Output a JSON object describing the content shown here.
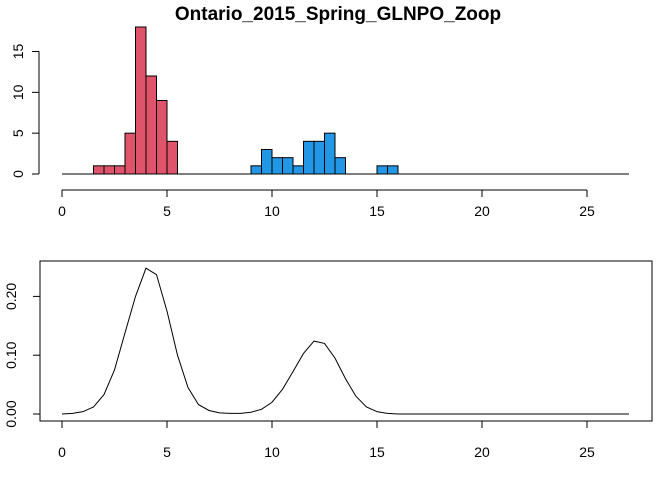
{
  "chart_data": [
    {
      "type": "bar",
      "title": "Ontario_2015_Spring_GLNPO_Zoop",
      "xlabel": "",
      "ylabel": "",
      "xlim": [
        0,
        27
      ],
      "ylim": [
        0,
        18
      ],
      "x_ticks": [
        0,
        5,
        10,
        15,
        20,
        25
      ],
      "y_ticks": [
        0,
        5,
        10,
        15
      ],
      "bin_width": 0.5,
      "series": [
        {
          "color": "#DF536B",
          "bins": [
            {
              "x0": 1.5,
              "x1": 2.0,
              "value": 1
            },
            {
              "x0": 2.0,
              "x1": 2.5,
              "value": 1
            },
            {
              "x0": 2.5,
              "x1": 3.0,
              "value": 1
            },
            {
              "x0": 3.0,
              "x1": 3.5,
              "value": 5
            },
            {
              "x0": 3.5,
              "x1": 4.0,
              "value": 18
            },
            {
              "x0": 4.0,
              "x1": 4.5,
              "value": 12
            },
            {
              "x0": 4.5,
              "x1": 5.0,
              "value": 9
            },
            {
              "x0": 5.0,
              "x1": 5.5,
              "value": 4
            }
          ]
        },
        {
          "color": "#2297E6",
          "bins": [
            {
              "x0": 9.0,
              "x1": 9.5,
              "value": 1
            },
            {
              "x0": 9.5,
              "x1": 10.0,
              "value": 3
            },
            {
              "x0": 10.0,
              "x1": 10.5,
              "value": 2
            },
            {
              "x0": 10.5,
              "x1": 11.0,
              "value": 2
            },
            {
              "x0": 11.0,
              "x1": 11.5,
              "value": 1
            },
            {
              "x0": 11.5,
              "x1": 12.0,
              "value": 4
            },
            {
              "x0": 12.0,
              "x1": 12.5,
              "value": 4
            },
            {
              "x0": 12.5,
              "x1": 13.0,
              "value": 5
            },
            {
              "x0": 13.0,
              "x1": 13.5,
              "value": 2
            },
            {
              "x0": 15.0,
              "x1": 15.5,
              "value": 1
            },
            {
              "x0": 15.5,
              "x1": 16.0,
              "value": 1
            }
          ]
        }
      ],
      "baseline_range": [
        0,
        27
      ]
    },
    {
      "type": "line",
      "title": "",
      "xlabel": "",
      "ylabel": "",
      "xlim": [
        0,
        27
      ],
      "ylim": [
        0,
        0.25
      ],
      "x_ticks": [
        0,
        5,
        10,
        15,
        20,
        25
      ],
      "y_ticks": [
        0.0,
        0.1,
        0.2
      ],
      "y_tick_labels": [
        "0.00",
        "0.10",
        "0.20"
      ],
      "series": [
        {
          "color": "#000000",
          "x": [
            0,
            0.5,
            1,
            1.5,
            2,
            2.5,
            3,
            3.5,
            4,
            4.5,
            5,
            5.5,
            6,
            6.5,
            7,
            7.5,
            8,
            8.5,
            9,
            9.5,
            10,
            10.5,
            11,
            11.5,
            12,
            12.5,
            13,
            13.5,
            14,
            14.5,
            15,
            15.5,
            16,
            17,
            18,
            19,
            20,
            21,
            22,
            23,
            24,
            25,
            26,
            27
          ],
          "y": [
            0.0,
            0.001,
            0.004,
            0.012,
            0.033,
            0.075,
            0.138,
            0.2,
            0.248,
            0.237,
            0.175,
            0.1,
            0.045,
            0.016,
            0.006,
            0.002,
            0.001,
            0.001,
            0.003,
            0.008,
            0.02,
            0.042,
            0.072,
            0.103,
            0.124,
            0.12,
            0.095,
            0.06,
            0.03,
            0.012,
            0.004,
            0.001,
            0.0,
            0.0,
            0.0,
            0.0,
            0.0,
            0.0,
            0.0,
            0.0,
            0.0,
            0.0,
            0.0,
            0.0
          ]
        }
      ]
    }
  ]
}
